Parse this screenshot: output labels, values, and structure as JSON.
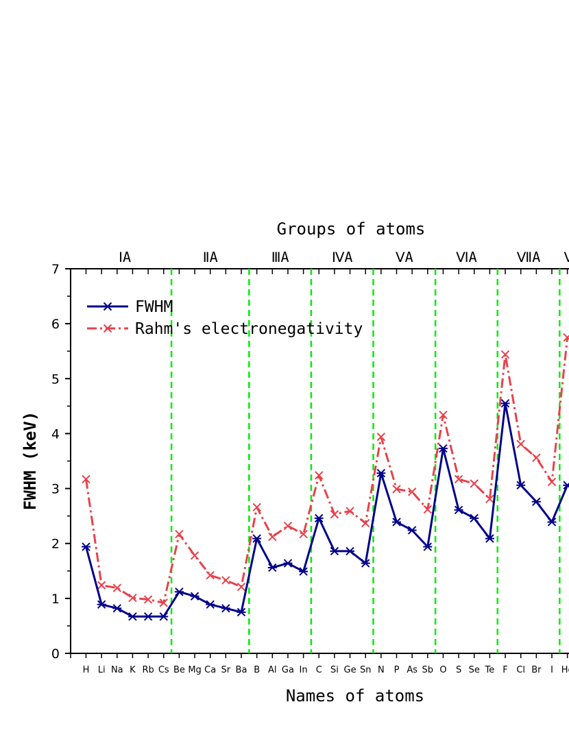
{
  "chart_data": {
    "type": "line",
    "top_axis_title": "Groups of atoms",
    "xlabel": "Names of atoms",
    "ylabel": "FWHM (keV)",
    "ylim": [
      0,
      7
    ],
    "y_ticks": [
      "0",
      "1",
      "2",
      "3",
      "4",
      "5",
      "6",
      "7"
    ],
    "grid": false,
    "legend_position": "top-left",
    "categories": [
      "H",
      "Li",
      "Na",
      "K",
      "Rb",
      "Cs",
      "Be",
      "Mg",
      "Ca",
      "Sr",
      "Ba",
      "B",
      "Al",
      "Ga",
      "In",
      "C",
      "Si",
      "Ge",
      "Sn",
      "N",
      "P",
      "As",
      "Sb",
      "O",
      "S",
      "Se",
      "Te",
      "F",
      "Cl",
      "Br",
      "I",
      "He"
    ],
    "groups": [
      {
        "label": "ⅠA",
        "start": 0,
        "end": 5
      },
      {
        "label": "ⅡA",
        "start": 6,
        "end": 10
      },
      {
        "label": "ⅢA",
        "start": 11,
        "end": 14
      },
      {
        "label": "ⅣA",
        "start": 15,
        "end": 18
      },
      {
        "label": "ⅤA",
        "start": 19,
        "end": 22
      },
      {
        "label": "ⅥA",
        "start": 23,
        "end": 26
      },
      {
        "label": "ⅦA",
        "start": 27,
        "end": 30
      },
      {
        "label": "Ⅷ",
        "start": 31,
        "end": 31
      }
    ],
    "series": [
      {
        "name": "FWHM",
        "color": "#00008B",
        "marker": "asterisk",
        "line_style": "solid",
        "values": [
          1.94,
          0.89,
          0.82,
          0.67,
          0.67,
          0.67,
          1.12,
          1.04,
          0.89,
          0.82,
          0.75,
          2.09,
          1.56,
          1.64,
          1.49,
          2.46,
          1.86,
          1.86,
          1.64,
          3.28,
          2.39,
          2.24,
          1.94,
          3.73,
          2.61,
          2.46,
          2.09,
          4.55,
          3.06,
          2.76,
          2.39,
          3.06
        ]
      },
      {
        "name": "Rahm's electronegativity",
        "color": "#E8414A",
        "marker": "x",
        "line_style": "dash-dot",
        "values": [
          3.17,
          1.24,
          1.19,
          1.01,
          0.98,
          0.92,
          2.17,
          1.78,
          1.42,
          1.33,
          1.21,
          2.66,
          2.12,
          2.32,
          2.17,
          3.24,
          2.53,
          2.59,
          2.37,
          3.94,
          2.99,
          2.94,
          2.62,
          4.34,
          3.17,
          3.09,
          2.81,
          5.44,
          3.81,
          3.56,
          3.12,
          5.75
        ]
      }
    ],
    "separator_color": "#00EE00"
  }
}
